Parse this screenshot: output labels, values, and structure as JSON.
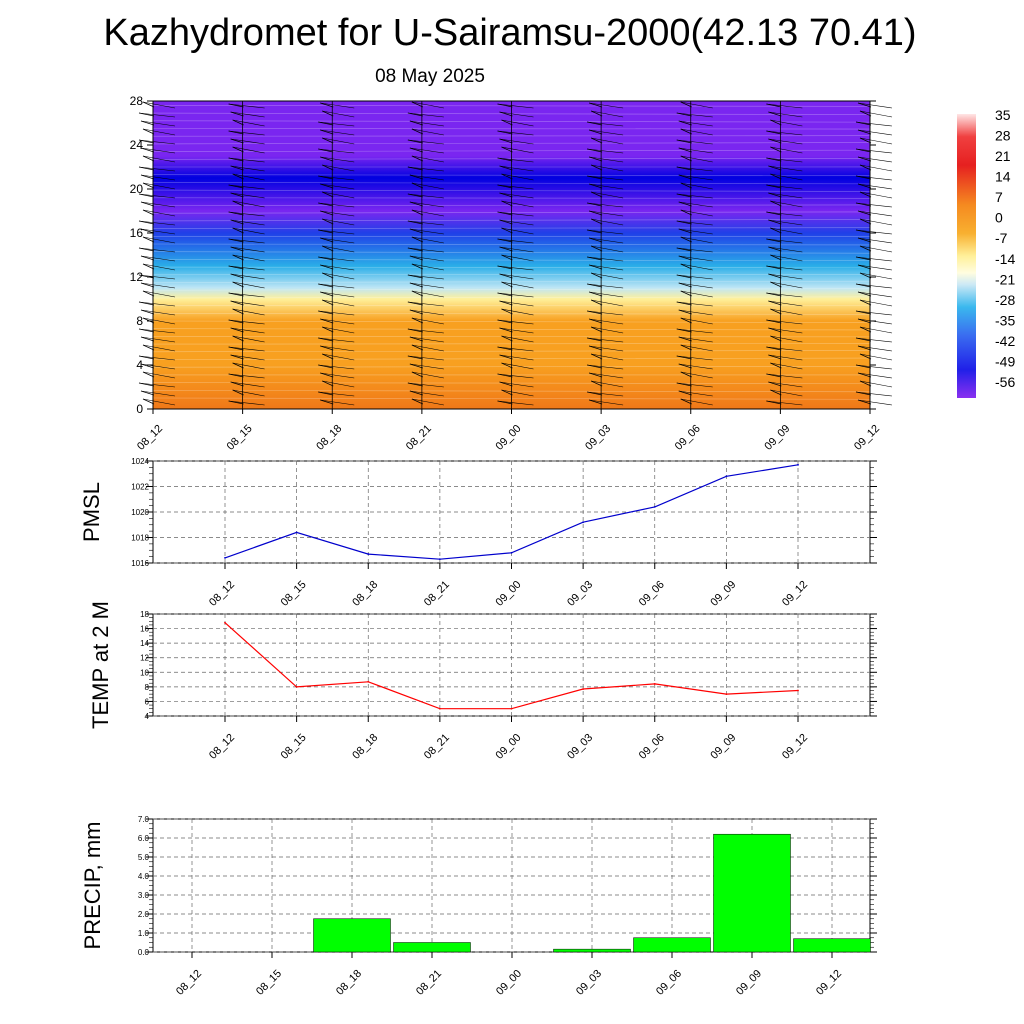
{
  "page": {
    "title": "Kazhydromet for U-Sairamsu-2000(42.13 70.41)",
    "subtitle": "08 May 2025"
  },
  "chart_data": [
    {
      "type": "heatmap",
      "title": "",
      "ylim": [
        0,
        28
      ],
      "yticks": [
        "0",
        "4",
        "8",
        "12",
        "16",
        "20",
        "24",
        "28"
      ],
      "x_ticks": [
        "08_12",
        "08_15",
        "08_18",
        "08_21",
        "09_00",
        "09_03",
        "09_06",
        "09_09",
        "09_12"
      ],
      "colorbar_labels": [
        "35",
        "28",
        "21",
        "14",
        "7",
        "0",
        "-7",
        "-14",
        "-21",
        "-28",
        "-35",
        "-42",
        "-49",
        "-56"
      ],
      "temperature_profile": [
        {
          "height": 0,
          "value": 14
        },
        {
          "height": 4,
          "value": 8
        },
        {
          "height": 8,
          "value": 2
        },
        {
          "height": 10,
          "value": -7
        },
        {
          "height": 11,
          "value": -14
        },
        {
          "height": 13,
          "value": -28
        },
        {
          "height": 16,
          "value": -42
        },
        {
          "height": 18,
          "value": -56
        },
        {
          "height": 21,
          "value": -52
        },
        {
          "height": 23,
          "value": -60
        },
        {
          "height": 28,
          "value": -60
        }
      ],
      "colors": {
        "warm": "#f07818",
        "orange": "#f8a020",
        "yellow": "#fff09a",
        "cold_light": "#bfe6f5",
        "cyan": "#2aaee8",
        "blue": "#2040e8",
        "deep_blue": "#0000e0",
        "violet": "#7a26f0"
      },
      "wind_barbs": true
    },
    {
      "type": "line",
      "ylabel": "PMSL",
      "x": [
        "08_12",
        "08_15",
        "08_18",
        "08_21",
        "09_00",
        "09_03",
        "09_06",
        "09_09",
        "09_12"
      ],
      "series": [
        {
          "values": [
            1016.4,
            1018.4,
            1016.7,
            1016.3,
            1016.8,
            1019.2,
            1020.4,
            1022.8,
            1023.7
          ]
        }
      ],
      "ylim": [
        1016,
        1024
      ],
      "yticks": [
        "1016",
        "1018",
        "1020",
        "1022",
        "1024"
      ],
      "color": "#0000cc"
    },
    {
      "type": "line",
      "ylabel": "TEMP at 2 M",
      "x": [
        "08_12",
        "08_15",
        "08_18",
        "08_21",
        "09_00",
        "09_03",
        "09_06",
        "09_09",
        "09_12"
      ],
      "series": [
        {
          "values": [
            16.8,
            8.0,
            8.7,
            5.0,
            5.0,
            7.7,
            8.4,
            7.0,
            7.5
          ]
        }
      ],
      "ylim": [
        4,
        18
      ],
      "yticks": [
        "4",
        "6",
        "8",
        "10",
        "12",
        "14",
        "16",
        "18"
      ],
      "color": "#ff0000"
    },
    {
      "type": "bar",
      "ylabel": "PRECIP, mm",
      "categories": [
        "08_12",
        "08_15",
        "08_18",
        "08_21",
        "09_00",
        "09_03",
        "09_06",
        "09_09",
        "09_12"
      ],
      "values": [
        0,
        0,
        1.75,
        0.5,
        0,
        0.15,
        0.75,
        6.2,
        0.7
      ],
      "ylim": [
        0,
        7
      ],
      "yticks": [
        "0.0",
        "1.0",
        "2.0",
        "3.0",
        "4.0",
        "5.0",
        "6.0",
        "7.0"
      ],
      "color": "#00ff00"
    }
  ]
}
